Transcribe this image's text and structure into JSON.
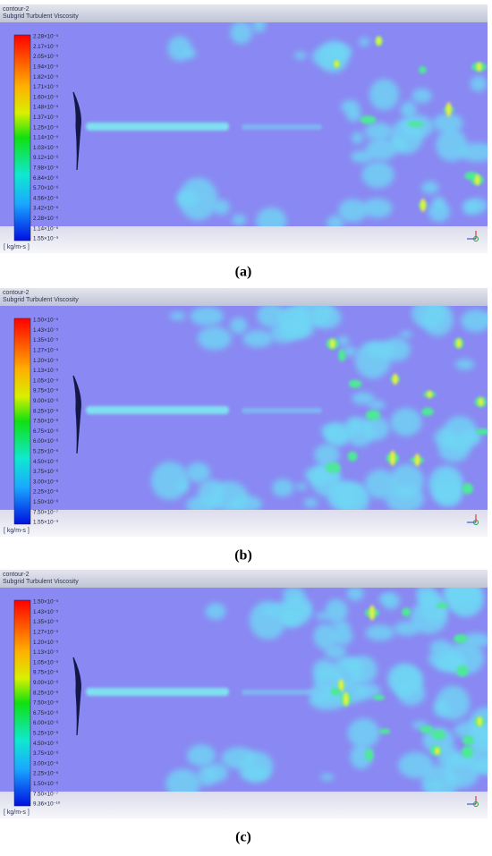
{
  "panels": [
    {
      "header": {
        "title": "contour-2",
        "subtitle": "Subgrid Turbulent Viscosity"
      },
      "legend": {
        "labels": [
          "2.28×10⁻⁵",
          "2.17×10⁻⁵",
          "2.05×10⁻⁵",
          "1.94×10⁻⁵",
          "1.82×10⁻⁵",
          "1.71×10⁻⁵",
          "1.60×10⁻⁵",
          "1.48×10⁻⁵",
          "1.37×10⁻⁵",
          "1.25×10⁻⁵",
          "1.14×10⁻⁵",
          "1.03×10⁻⁵",
          "9.12×10⁻⁶",
          "7.98×10⁻⁶",
          "6.84×10⁻⁶",
          "5.70×10⁻⁶",
          "4.56×10⁻⁶",
          "3.42×10⁻⁶",
          "2.28×10⁻⁶",
          "1.14×10⁻⁶",
          "1.55×10⁻⁹"
        ],
        "unit": "[ kg/m-s ]"
      },
      "caption": "(a)"
    },
    {
      "header": {
        "title": "contour-2",
        "subtitle": "Subgrid Turbulent Viscosity"
      },
      "legend": {
        "labels": [
          "1.50×10⁻⁵",
          "1.43×10⁻⁵",
          "1.35×10⁻⁵",
          "1.27×10⁻⁵",
          "1.20×10⁻⁵",
          "1.13×10⁻⁵",
          "1.05×10⁻⁵",
          "9.75×10⁻⁶",
          "9.00×10⁻⁶",
          "8.25×10⁻⁶",
          "7.50×10⁻⁶",
          "6.75×10⁻⁶",
          "6.00×10⁻⁶",
          "5.25×10⁻⁶",
          "4.50×10⁻⁶",
          "3.75×10⁻⁶",
          "3.00×10⁻⁶",
          "2.25×10⁻⁶",
          "1.50×10⁻⁶",
          "7.50×10⁻⁷",
          "1.55×10⁻⁹"
        ],
        "unit": "[ kg/m-s ]"
      },
      "caption": "(b)"
    },
    {
      "header": {
        "title": "contour-2",
        "subtitle": "Subgrid Turbulent Viscosity"
      },
      "legend": {
        "labels": [
          "1.50×10⁻⁵",
          "1.43×10⁻⁵",
          "1.35×10⁻⁵",
          "1.27×10⁻⁵",
          "1.20×10⁻⁵",
          "1.13×10⁻⁵",
          "1.05×10⁻⁵",
          "9.75×10⁻⁶",
          "9.00×10⁻⁶",
          "8.25×10⁻⁶",
          "7.50×10⁻⁶",
          "6.75×10⁻⁶",
          "6.00×10⁻⁶",
          "5.25×10⁻⁶",
          "4.50×10⁻⁶",
          "3.75×10⁻⁶",
          "3.00×10⁻⁶",
          "2.25×10⁻⁶",
          "1.50×10⁻⁶",
          "7.50×10⁻⁷",
          "9.36×10⁻¹⁰"
        ],
        "unit": "[ kg/m-s ]"
      },
      "caption": "(c)"
    }
  ]
}
